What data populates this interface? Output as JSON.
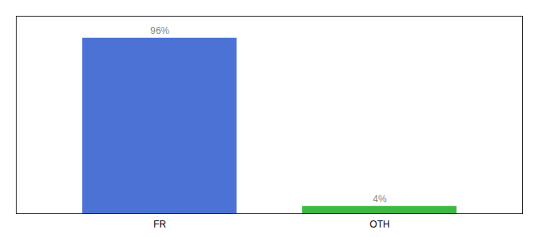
{
  "chart_data": {
    "type": "bar",
    "categories": [
      "FR",
      "OTH"
    ],
    "values": [
      96,
      4
    ],
    "value_labels": [
      "96%",
      "4%"
    ],
    "colors": [
      "#4b72d4",
      "#3cb843"
    ],
    "ylim": [
      0,
      108
    ],
    "grid": false,
    "data_labels": true,
    "tick_labels": "x"
  }
}
